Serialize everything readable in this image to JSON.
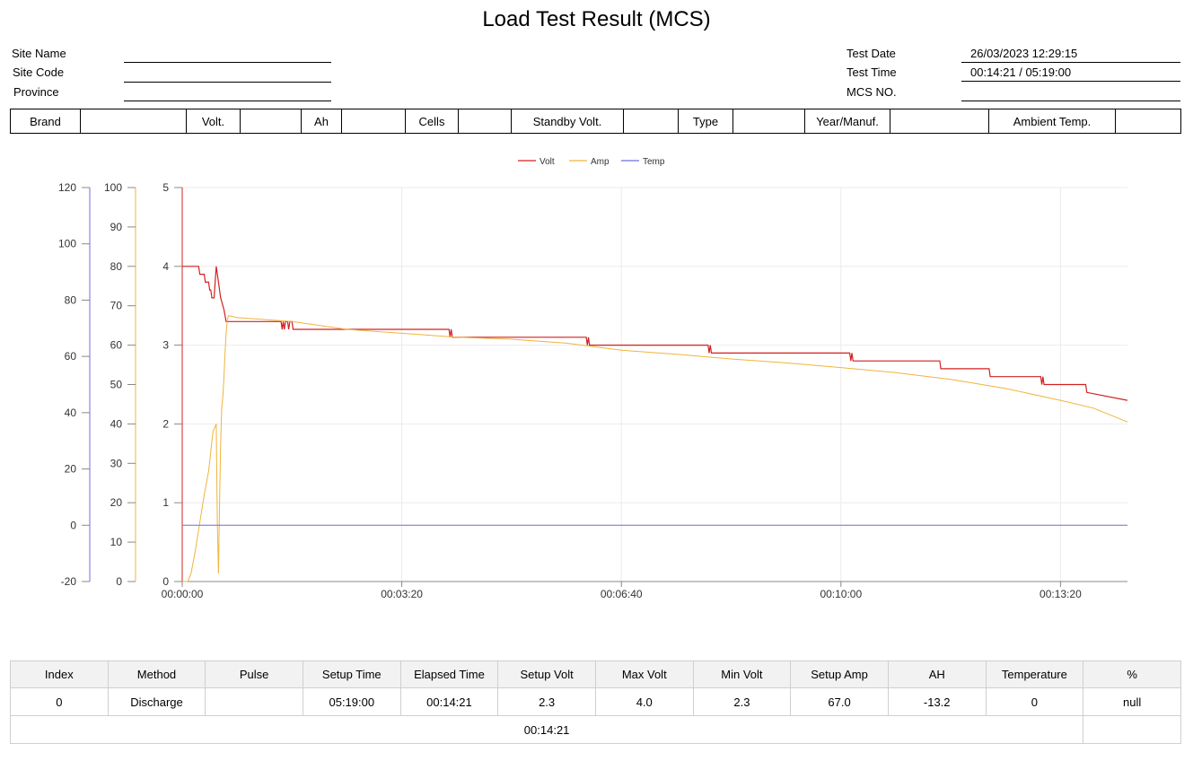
{
  "page": {
    "title": "Load Test Result (MCS)"
  },
  "site_info": {
    "site_name_label": "Site Name",
    "site_name_value": "",
    "site_code_label": "Site Code",
    "site_code_value": "",
    "province_label": "Province",
    "province_value": ""
  },
  "test_info": {
    "test_date_label": "Test Date",
    "test_date_value": "26/03/2023 12:29:15",
    "test_time_label": "Test Time",
    "test_time_value": "00:14:21 / 05:19:00",
    "mcs_no_label": "MCS NO.",
    "mcs_no_value": ""
  },
  "spec": {
    "brand_label": "Brand",
    "brand_value": "",
    "volt_label": "Volt.",
    "volt_value": "",
    "ah_label": "Ah",
    "ah_value": "",
    "cells_label": "Cells",
    "cells_value": "",
    "standby_label": "Standby Volt.",
    "standby_value": "",
    "type_label": "Type",
    "type_value": "",
    "year_label": "Year/Manuf.",
    "year_value": "",
    "ambient_label": "Ambient Temp.",
    "ambient_value": ""
  },
  "chart_data": {
    "type": "line",
    "legend_position": "top",
    "grid": true,
    "x_ticks": [
      "00:00:00",
      "00:03:20",
      "00:06:40",
      "00:10:00",
      "00:13:20"
    ],
    "x_tick_seconds": [
      0,
      200,
      400,
      600,
      800
    ],
    "xlim": [
      0,
      861
    ],
    "axes": {
      "temp": {
        "ylim": [
          -20,
          120
        ],
        "ticks": [
          -20,
          0,
          20,
          40,
          60,
          80,
          100,
          120
        ],
        "color": "#6f6fdc"
      },
      "amp": {
        "ylim": [
          0,
          100
        ],
        "ticks": [
          0,
          10,
          20,
          30,
          40,
          50,
          60,
          70,
          80,
          90,
          100
        ],
        "color": "#f0b43c"
      },
      "volt": {
        "ylim": [
          0,
          5
        ],
        "ticks": [
          0,
          1,
          2,
          3,
          4,
          5
        ],
        "color": "#d22020"
      }
    },
    "series": [
      {
        "name": "Volt",
        "axis": "volt",
        "color": "#d22020",
        "x": [
          0,
          15,
          16,
          20,
          21,
          24,
          25,
          26,
          27,
          29,
          30,
          31,
          33,
          35,
          37,
          38,
          40,
          42,
          45,
          90,
          91,
          92,
          93,
          94,
          96,
          97,
          98,
          100,
          101,
          243,
          244,
          245,
          246,
          247,
          368,
          369,
          370,
          371,
          372,
          479,
          480,
          481,
          482,
          483,
          608,
          609,
          610,
          611,
          612,
          690,
          691,
          735,
          736,
          782,
          783,
          784,
          785,
          823,
          824,
          861
        ],
        "y": [
          4.0,
          4.0,
          3.9,
          3.9,
          3.8,
          3.8,
          3.7,
          3.7,
          3.6,
          3.6,
          3.8,
          4.0,
          3.8,
          3.6,
          3.5,
          3.45,
          3.3,
          3.3,
          3.3,
          3.3,
          3.2,
          3.3,
          3.2,
          3.3,
          3.3,
          3.2,
          3.3,
          3.3,
          3.2,
          3.2,
          3.1,
          3.2,
          3.1,
          3.1,
          3.1,
          3.0,
          3.1,
          3.0,
          3.0,
          3.0,
          2.9,
          3.0,
          2.9,
          2.9,
          2.9,
          2.8,
          2.9,
          2.8,
          2.8,
          2.8,
          2.7,
          2.7,
          2.6,
          2.6,
          2.5,
          2.6,
          2.5,
          2.5,
          2.4,
          2.3
        ]
      },
      {
        "name": "Amp",
        "axis": "amp",
        "color": "#f0b43c",
        "x": [
          0,
          5,
          8,
          12,
          16,
          20,
          24,
          28,
          31,
          32,
          33,
          34,
          35,
          36,
          37,
          38,
          39,
          40,
          41,
          42,
          50,
          100,
          150,
          200,
          250,
          300,
          350,
          400,
          450,
          500,
          550,
          600,
          650,
          700,
          750,
          800,
          830,
          861
        ],
        "y": [
          0,
          0,
          2,
          8,
          15,
          22,
          28,
          38,
          40,
          15,
          2,
          20,
          35,
          44,
          47,
          52,
          58,
          63,
          66,
          67.5,
          67,
          66,
          64,
          63,
          62,
          61.5,
          60.5,
          58.7,
          57.7,
          56.5,
          55.5,
          54.3,
          53,
          51.3,
          49,
          46,
          44,
          40.5
        ]
      },
      {
        "name": "Temp",
        "axis": "temp",
        "color": "#6f6fdc",
        "x": [
          0,
          861
        ],
        "y": [
          0,
          0
        ]
      }
    ]
  },
  "result_table": {
    "headers": [
      "Index",
      "Method",
      "Pulse",
      "Setup Time",
      "Elapsed Time",
      "Setup Volt",
      "Max Volt",
      "Min Volt",
      "Setup Amp",
      "AH",
      "Temperature",
      "%"
    ],
    "row": [
      "0",
      "Discharge",
      "",
      "05:19:00",
      "00:14:21",
      "2.3",
      "4.0",
      "2.3",
      "67.0",
      "-13.2",
      "0",
      "null"
    ],
    "total_elapsed": "00:14:21"
  }
}
